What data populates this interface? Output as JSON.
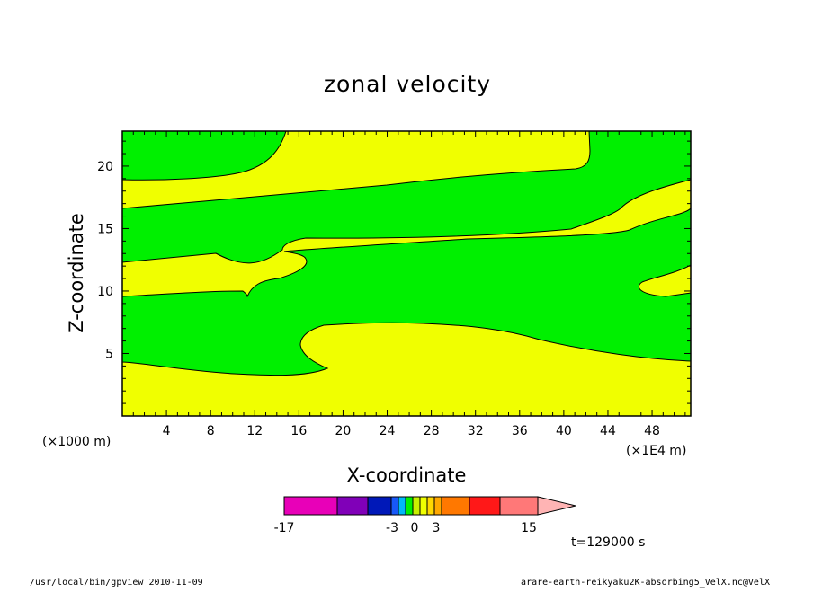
{
  "chart_data": {
    "type": "heatmap",
    "title": "zonal velocity",
    "xlabel": "X-coordinate",
    "ylabel": "Z-coordinate",
    "x_unit_left": "(×1000 m)",
    "x_unit_right": "(×1E4 m)",
    "xlim": [
      0,
      51.5
    ],
    "ylim": [
      0,
      22.8
    ],
    "x_ticks": [
      4,
      8,
      12,
      16,
      20,
      24,
      28,
      32,
      36,
      40,
      44,
      48
    ],
    "y_ticks": [
      5,
      10,
      15,
      20
    ],
    "fill_colors": {
      "positive": "#f0ff00",
      "negative": "#00f000"
    },
    "regions": [
      {
        "color": "positive",
        "description": "lower band",
        "approx_z": [
          0,
          4.5
        ]
      },
      {
        "color": "positive",
        "description": "mid-lower lobe",
        "approx_z": [
          3.5,
          7.5
        ]
      },
      {
        "color": "positive",
        "description": "left bubble",
        "approx_z": [
          9.5,
          13.3
        ]
      },
      {
        "color": "positive",
        "description": "mid-upper tongue",
        "approx_z": [
          13.5,
          17
        ]
      },
      {
        "color": "positive",
        "description": "upper band",
        "approx_z": [
          17,
          22.8
        ]
      },
      {
        "color": "positive",
        "description": "right lobe",
        "approx_z": [
          9.8,
          12.3
        ]
      }
    ],
    "colorbar": {
      "colors": [
        "#e800b8",
        "#8000b8",
        "#0018b8",
        "#1858f8",
        "#00b8f8",
        "#00f000",
        "#c8f000",
        "#f0ff00",
        "#ffd800",
        "#ffa800",
        "#ff7800",
        "#ff1818",
        "#ff7878",
        "#ffb4b4"
      ],
      "tick_labels": [
        "-17",
        "-3",
        "0",
        "3",
        "15"
      ],
      "extend": "max"
    }
  },
  "footer": {
    "time_label": "t=129000 s",
    "left_note": "/usr/local/bin/gpview  2010-11-09",
    "right_note": "arare-earth-reikyaku2K-absorbing5_VelX.nc@VelX"
  }
}
